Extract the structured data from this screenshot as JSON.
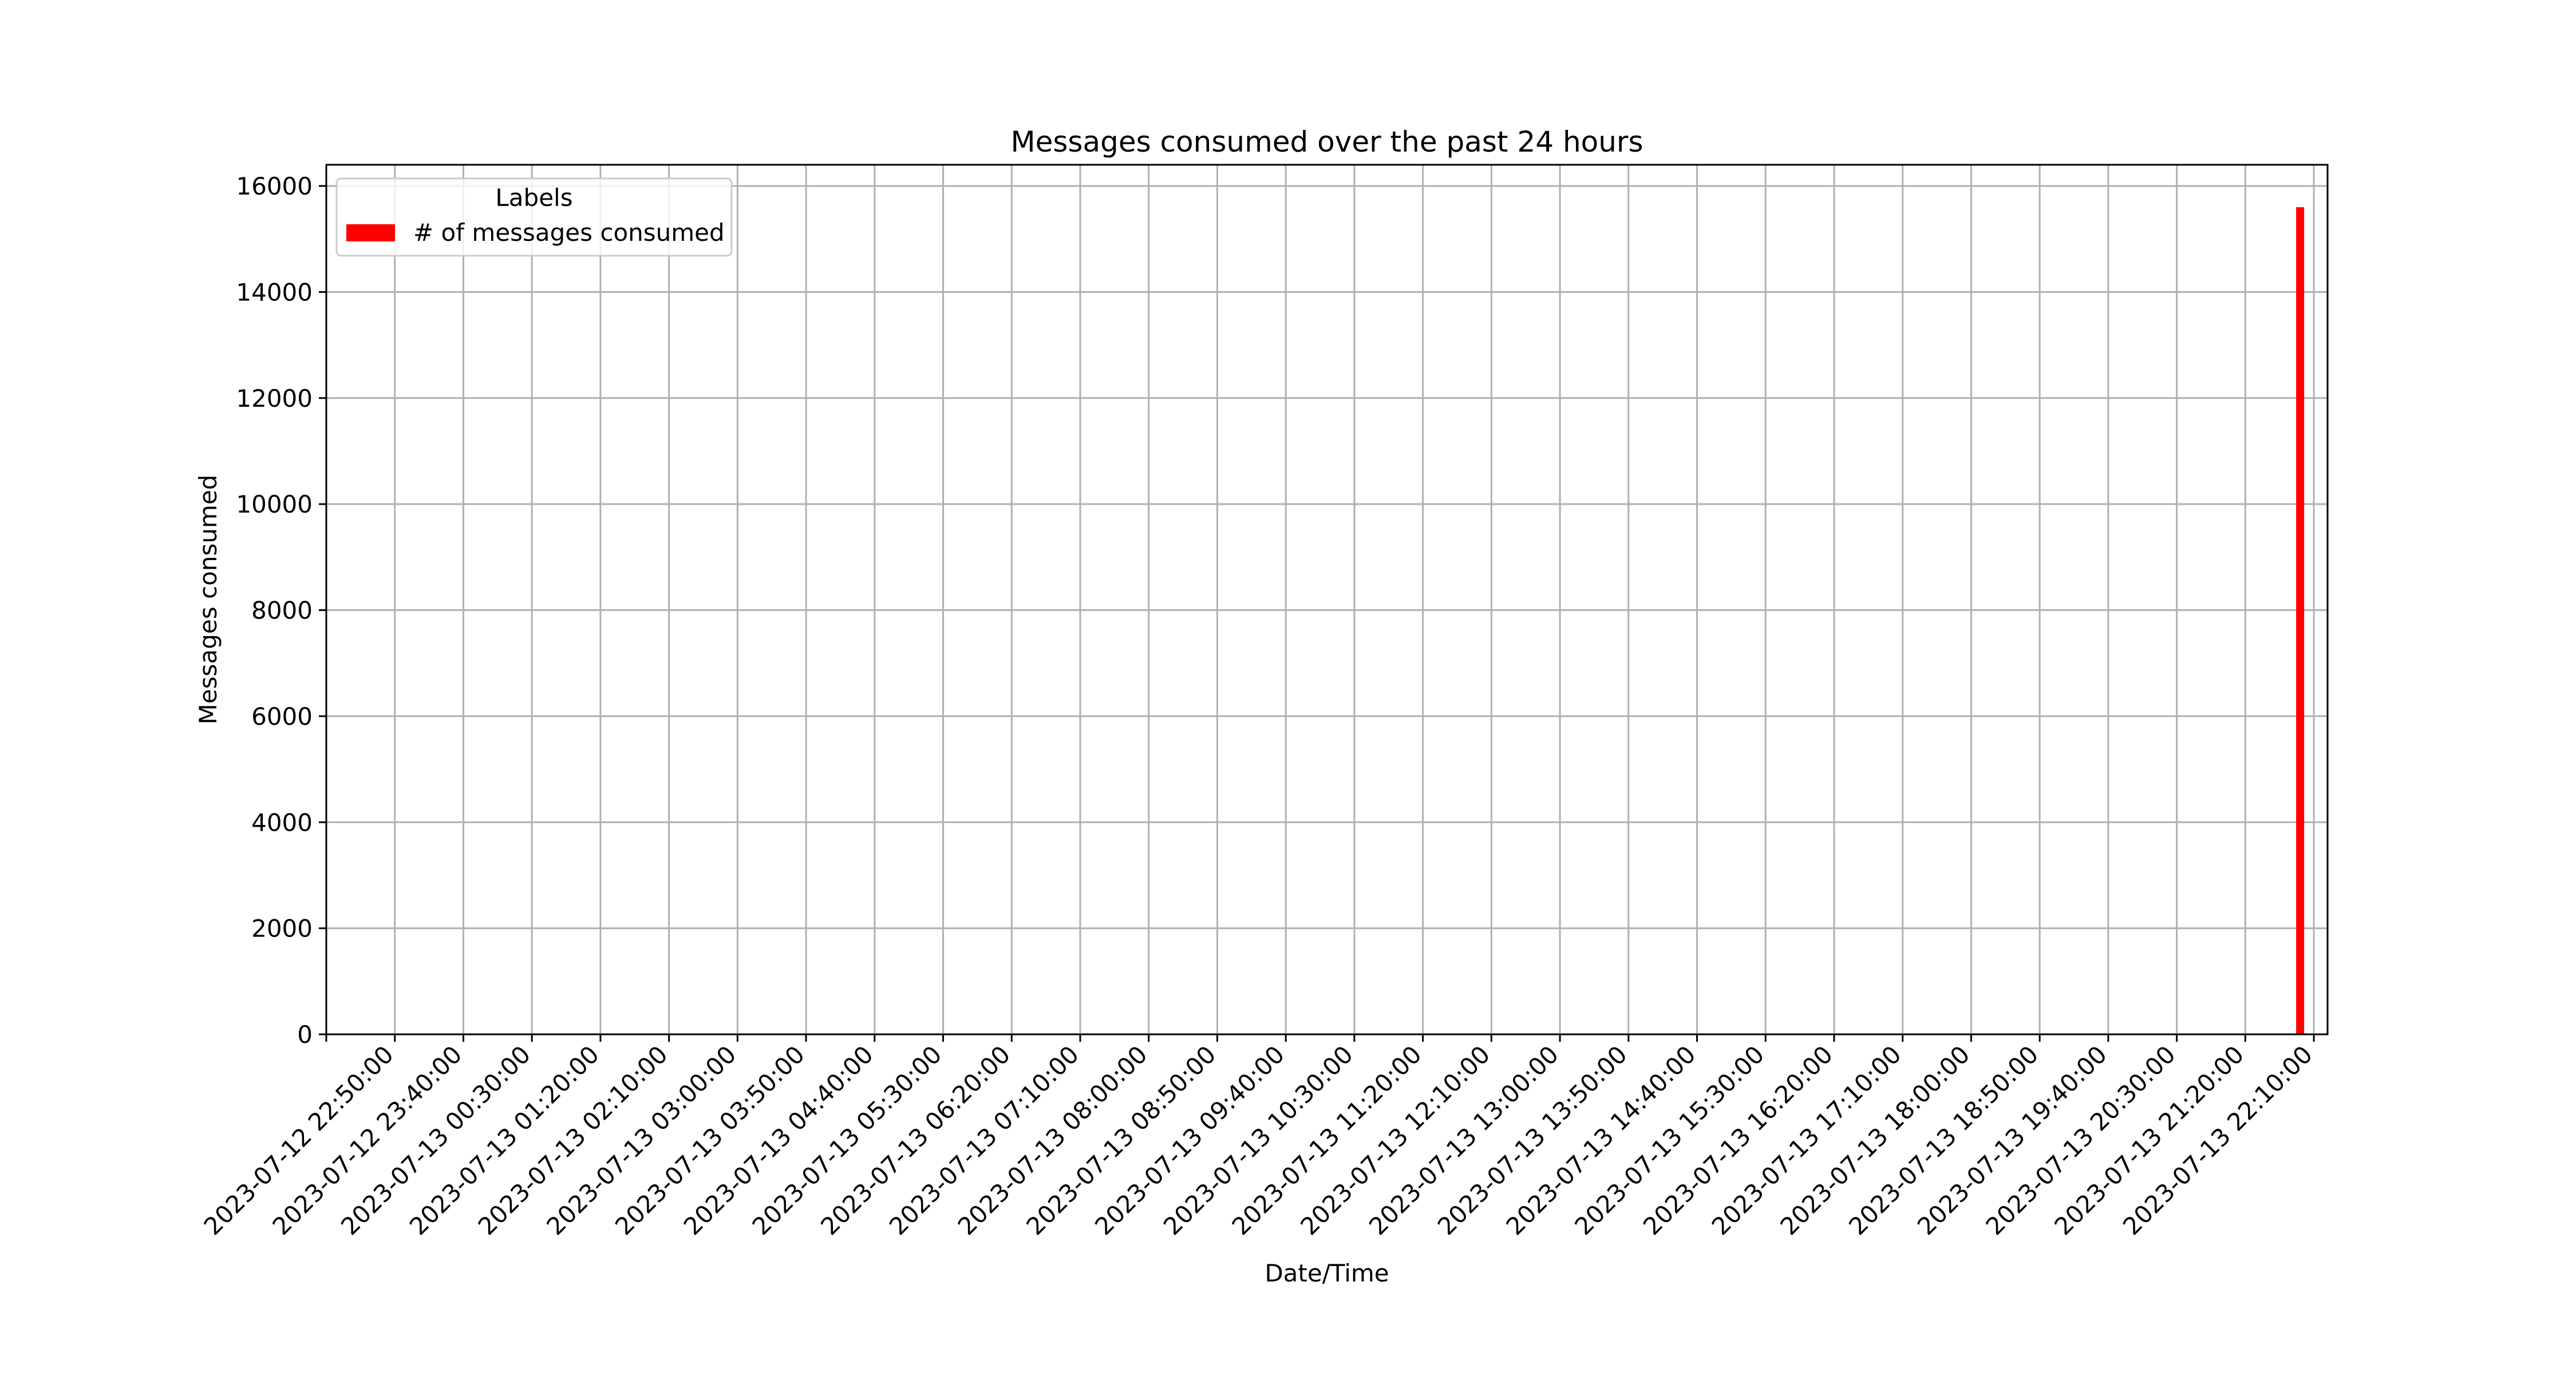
{
  "chart_data": {
    "type": "bar",
    "title": "Messages consumed over the past 24 hours",
    "xlabel": "Date/Time",
    "ylabel": "Messages consumed",
    "ylim": [
      0,
      16400
    ],
    "yticks": [
      0,
      2000,
      4000,
      6000,
      8000,
      10000,
      12000,
      14000,
      16000
    ],
    "x_start": "2023-07-12 22:00:00",
    "x_end": "2023-07-13 22:20:00",
    "xticks": [
      "2023-07-12 22:50:00",
      "2023-07-12 23:40:00",
      "2023-07-13 00:30:00",
      "2023-07-13 01:20:00",
      "2023-07-13 02:10:00",
      "2023-07-13 03:00:00",
      "2023-07-13 03:50:00",
      "2023-07-13 04:40:00",
      "2023-07-13 05:30:00",
      "2023-07-13 06:20:00",
      "2023-07-13 07:10:00",
      "2023-07-13 08:00:00",
      "2023-07-13 08:50:00",
      "2023-07-13 09:40:00",
      "2023-07-13 10:30:00",
      "2023-07-13 11:20:00",
      "2023-07-13 12:10:00",
      "2023-07-13 13:00:00",
      "2023-07-13 13:50:00",
      "2023-07-13 14:40:00",
      "2023-07-13 15:30:00",
      "2023-07-13 16:20:00",
      "2023-07-13 17:10:00",
      "2023-07-13 18:00:00",
      "2023-07-13 18:50:00",
      "2023-07-13 19:40:00",
      "2023-07-13 20:30:00",
      "2023-07-13 21:20:00",
      "2023-07-13 22:10:00"
    ],
    "grid": true,
    "legend": {
      "title": "Labels",
      "placement": "upper-left"
    },
    "series": [
      {
        "name": "# of messages consumed",
        "color": "#ff0000",
        "points": [
          {
            "x": "2023-07-13 22:00:00",
            "y": 15600
          }
        ]
      }
    ]
  }
}
